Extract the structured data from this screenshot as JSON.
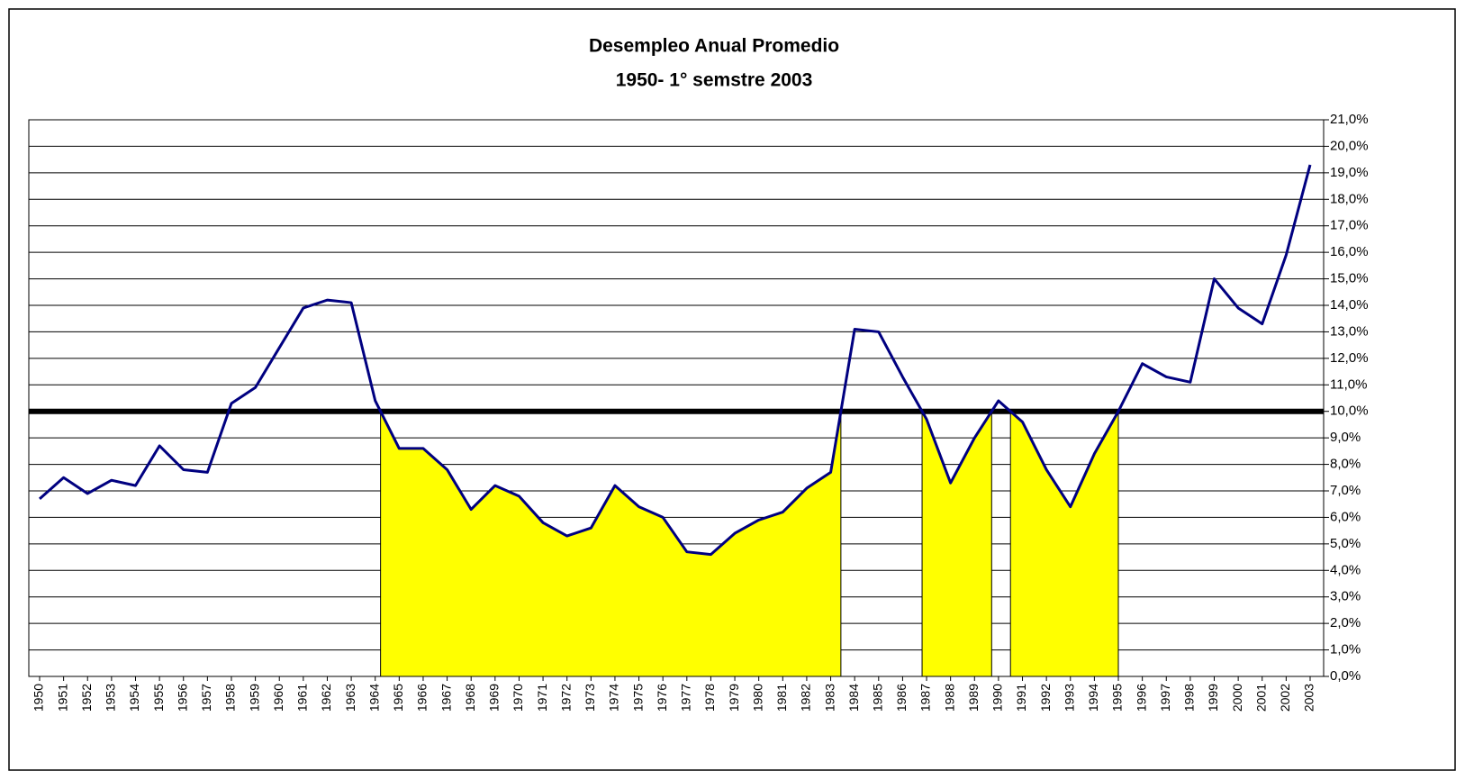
{
  "chart_data": {
    "type": "line",
    "title": "Desempleo Anual Promedio",
    "subtitle": "1950- 1° semstre 2003",
    "categories": [
      "1950",
      "1951",
      "1952",
      "1953",
      "1954",
      "1955",
      "1956",
      "1957",
      "1958",
      "1959",
      "1960",
      "1961",
      "1962",
      "1963",
      "1964",
      "1965",
      "1966",
      "1967",
      "1968",
      "1969",
      "1970",
      "1971",
      "1972",
      "1973",
      "1974",
      "1975",
      "1976",
      "1977",
      "1978",
      "1979",
      "1980",
      "1981",
      "1982",
      "1983",
      "1984",
      "1985",
      "1986",
      "1987",
      "1988",
      "1989",
      "1990",
      "1991",
      "1992",
      "1993",
      "1994",
      "1995",
      "1996",
      "1997",
      "1998",
      "1999",
      "2000",
      "2001",
      "2002",
      "2003"
    ],
    "series": [
      {
        "name": "Desempleo",
        "color": "#000080",
        "values": [
          6.7,
          7.5,
          6.9,
          7.4,
          7.2,
          8.7,
          7.8,
          7.7,
          10.3,
          10.9,
          12.4,
          13.9,
          14.2,
          14.1,
          10.4,
          8.6,
          8.6,
          7.8,
          6.3,
          7.2,
          6.8,
          5.8,
          5.3,
          5.6,
          7.2,
          6.4,
          6.0,
          4.7,
          4.6,
          5.4,
          5.9,
          6.2,
          7.1,
          7.7,
          13.1,
          13.0,
          11.3,
          9.7,
          7.3,
          9.0,
          10.4,
          9.6,
          7.8,
          6.4,
          8.4,
          10.0,
          11.8,
          11.3,
          11.1,
          15.0,
          13.9,
          13.3,
          15.9,
          19.3
        ]
      }
    ],
    "reference_line": 10,
    "shade_from": "1964",
    "shade_color": "#ffff00",
    "ylim": [
      0,
      21
    ],
    "yticks": [
      {
        "value": 0,
        "label": "0,0%"
      },
      {
        "value": 1,
        "label": "1,0%"
      },
      {
        "value": 2,
        "label": "2,0%"
      },
      {
        "value": 3,
        "label": "3,0%"
      },
      {
        "value": 4,
        "label": "4,0%"
      },
      {
        "value": 5,
        "label": "5,0%"
      },
      {
        "value": 6,
        "label": "6,0%"
      },
      {
        "value": 7,
        "label": "7,0%"
      },
      {
        "value": 8,
        "label": "8,0%"
      },
      {
        "value": 9,
        "label": "9,0%"
      },
      {
        "value": 10,
        "label": "10,0%"
      },
      {
        "value": 11,
        "label": "11,0%"
      },
      {
        "value": 12,
        "label": "12,0%"
      },
      {
        "value": 13,
        "label": "13,0%"
      },
      {
        "value": 14,
        "label": "14,0%"
      },
      {
        "value": 15,
        "label": "15,0%"
      },
      {
        "value": 16,
        "label": "16,0%"
      },
      {
        "value": 17,
        "label": "17,0%"
      },
      {
        "value": 18,
        "label": "18,0%"
      },
      {
        "value": 19,
        "label": "19,0%"
      },
      {
        "value": 20,
        "label": "20,0%"
      },
      {
        "value": 21,
        "label": "21,0%"
      }
    ],
    "grid": true
  }
}
